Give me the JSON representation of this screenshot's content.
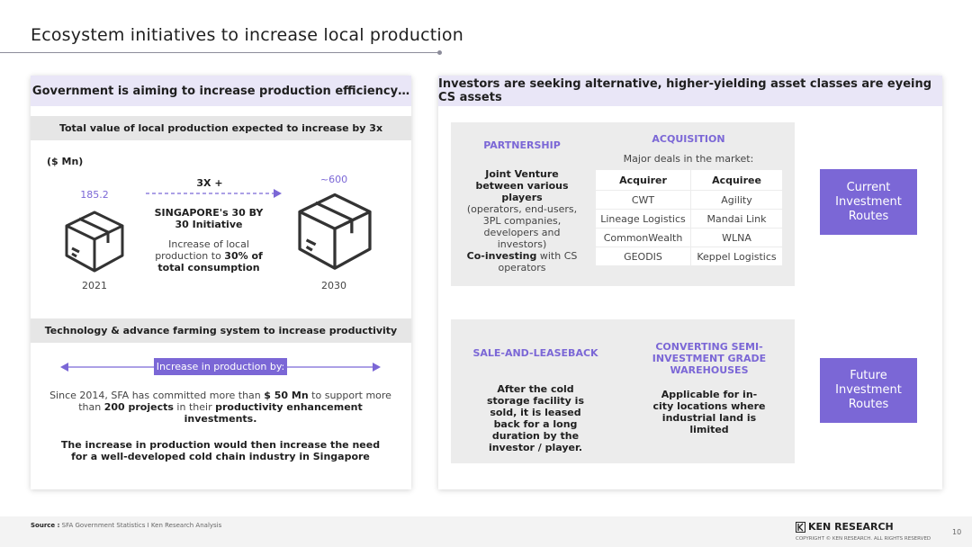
{
  "title": "Ecosystem initiatives to increase local production",
  "left": {
    "header": "Government is aiming to increase production efficiency…",
    "section1_title": "Total value of local production expected to increase by 3x",
    "unit": "($ Mn)",
    "value_2021": "185.2",
    "value_2030": "~600",
    "multiplier": "3X +",
    "initiative_name": "SINGAPORE's 30 BY 30 Initiative",
    "initiative_desc_1": "Increase of local production to",
    "initiative_desc_bold": "30% of total consumption",
    "year_2021": "2021",
    "year_2030": "2030",
    "section2_title": "Technology & advance farming system to increase productivity",
    "increase_label": "Increase in production by:",
    "para_1a": "Since 2014, SFA has committed more than ",
    "para_1b": "$ 50 Mn",
    "para_1c": " to support more than ",
    "para_1d": "200 projects",
    "para_1e": " in their ",
    "para_1f": "productivity enhancement investments.",
    "para_2": "The increase in production would then increase the need for a well-developed cold chain industry in Singapore"
  },
  "right": {
    "header": "Investors are seeking alternative, higher-yielding asset classes are eyeing CS assets",
    "partnership_title": "PARTNERSHIP",
    "partnership_jv_bold": "Joint Venture between various players",
    "partnership_jv_text": "(operators, end-users, 3PL companies, developers and investors)",
    "partnership_co_bold": "Co-investing",
    "partnership_co_text": " with CS operators",
    "acquisition_title": "ACQUISITION",
    "acquisition_sub": "Major deals in the market:",
    "table_headers": [
      "Acquirer",
      "Acquiree"
    ],
    "table_rows": [
      [
        "CWT",
        "Agility"
      ],
      [
        "Lineage Logistics",
        "Mandai Link"
      ],
      [
        "CommonWealth",
        "WLNA"
      ],
      [
        "GEODIS",
        "Keppel Logistics"
      ]
    ],
    "current_label": "Current Investment Routes",
    "saleback_title": "SALE-AND-LEASEBACK",
    "saleback_text": "After the cold storage facility is sold, it is leased back for a long duration by the investor / player.",
    "converting_title": "CONVERTING SEMI-INVESTMENT GRADE WAREHOUSES",
    "converting_text": "Applicable for in-city locations where industrial land is limited",
    "future_label": "Future Investment Routes"
  },
  "footer": {
    "source_label": "Source :",
    "source_text": "SFA Government Statistics I Ken Research Analysis",
    "brand": "KEN RESEARCH",
    "copyright": "COPYRIGHT © KEN RESEARCH. ALL RIGHTS RESERVED",
    "page_number": "10"
  },
  "colors": {
    "accent": "#7b67d6",
    "header_band": "#e9e6f7",
    "panel_grey": "#ececec"
  },
  "icons": [
    "box-icon",
    "arrow-right-icon",
    "double-arrow-icon",
    "ken-logo-icon"
  ]
}
